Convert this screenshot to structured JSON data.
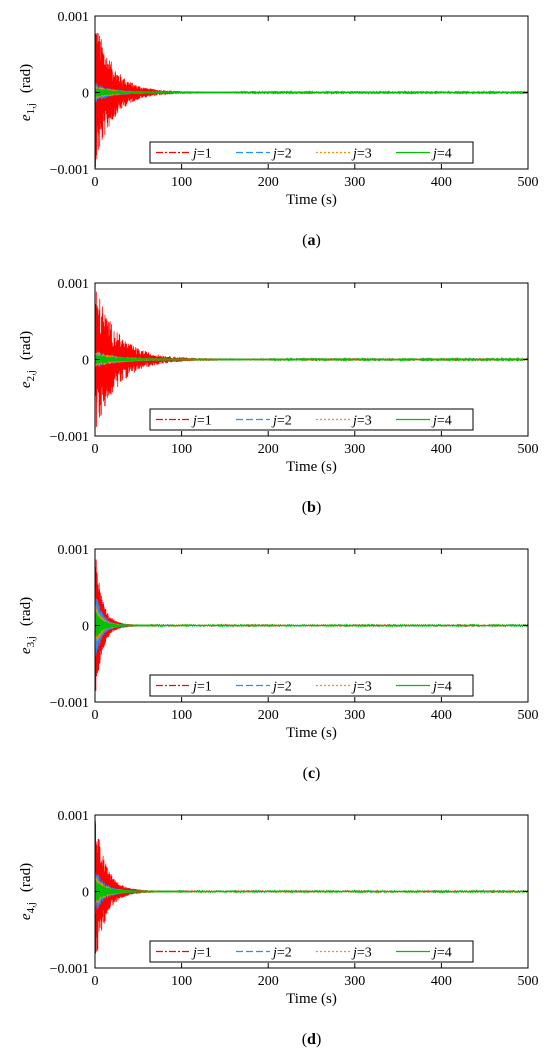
{
  "colors": {
    "j1": "#ff0000",
    "j2": "#1e90ff",
    "j3": "#ff8c00",
    "j4": "#00c000",
    "axis": "#000000"
  },
  "chart_data": [
    {
      "type": "line",
      "caption": "a",
      "ylabel_sub": "1,j",
      "x_label": "Time (s)",
      "y_unit": "(rad)",
      "xlim": [
        0,
        500
      ],
      "ylim": [
        -0.001,
        0.001
      ],
      "x_ticks": [
        "0",
        "100",
        "200",
        "300",
        "400",
        "500"
      ],
      "y_ticks": [
        "-0.001",
        "0",
        "0.001"
      ],
      "decay_time_s": 20,
      "series": [
        {
          "name": "j=1",
          "color_key": "j1",
          "amplitude": 0.001
        },
        {
          "name": "j=2",
          "color_key": "j2",
          "amplitude": 0.00012
        },
        {
          "name": "j=3",
          "color_key": "j3",
          "amplitude": 8e-05
        },
        {
          "name": "j=4",
          "color_key": "j4",
          "amplitude": 5e-05
        }
      ],
      "legend": [
        "j=1",
        "j=2",
        "j=3",
        "j=4"
      ]
    },
    {
      "type": "line",
      "caption": "b",
      "ylabel_sub": "2,j",
      "x_label": "Time (s)",
      "y_unit": "(rad)",
      "xlim": [
        0,
        500
      ],
      "ylim": [
        -0.001,
        0.001
      ],
      "x_ticks": [
        "0",
        "100",
        "200",
        "300",
        "400",
        "500"
      ],
      "y_ticks": [
        "-0.001",
        "0",
        "0.001"
      ],
      "decay_time_s": 25,
      "series": [
        {
          "name": "j=1",
          "color_key": "j1",
          "amplitude": 0.001
        },
        {
          "name": "j=2",
          "color_key": "j2",
          "amplitude": 0.00012
        },
        {
          "name": "j=3",
          "color_key": "j3",
          "amplitude": 0.0001
        },
        {
          "name": "j=4",
          "color_key": "j4",
          "amplitude": 6e-05
        }
      ],
      "legend": [
        "j=1",
        "j=2",
        "j=3",
        "j=4"
      ]
    },
    {
      "type": "line",
      "caption": "c",
      "ylabel_sub": "3,j",
      "x_label": "Time (s)",
      "y_unit": "(rad)",
      "xlim": [
        0,
        500
      ],
      "ylim": [
        -0.001,
        0.001
      ],
      "x_ticks": [
        "0",
        "100",
        "200",
        "300",
        "400",
        "500"
      ],
      "y_ticks": [
        "-0.001",
        "0",
        "0.001"
      ],
      "decay_time_s": 8,
      "series": [
        {
          "name": "j=1",
          "color_key": "j1",
          "amplitude": 0.001
        },
        {
          "name": "j=2",
          "color_key": "j2",
          "amplitude": 0.0005
        },
        {
          "name": "j=3",
          "color_key": "j3",
          "amplitude": 0.0003
        },
        {
          "name": "j=4",
          "color_key": "j4",
          "amplitude": 0.0002
        }
      ],
      "legend": [
        "j=1",
        "j=2",
        "j=3",
        "j=4"
      ]
    },
    {
      "type": "line",
      "caption": "d",
      "ylabel_sub": "4,j",
      "x_label": "Time (s)",
      "y_unit": "(rad)",
      "xlim": [
        0,
        500
      ],
      "ylim": [
        -0.001,
        0.001
      ],
      "x_ticks": [
        "0",
        "100",
        "200",
        "300",
        "400",
        "500"
      ],
      "y_ticks": [
        "-0.001",
        "0",
        "0.001"
      ],
      "decay_time_s": 12,
      "series": [
        {
          "name": "j=1",
          "color_key": "j1",
          "amplitude": 0.001
        },
        {
          "name": "j=2",
          "color_key": "j2",
          "amplitude": 0.0003
        },
        {
          "name": "j=3",
          "color_key": "j3",
          "amplitude": 0.0002
        },
        {
          "name": "j=4",
          "color_key": "j4",
          "amplitude": 0.00015
        }
      ],
      "legend": [
        "j=1",
        "j=2",
        "j=3",
        "j=4"
      ]
    }
  ]
}
